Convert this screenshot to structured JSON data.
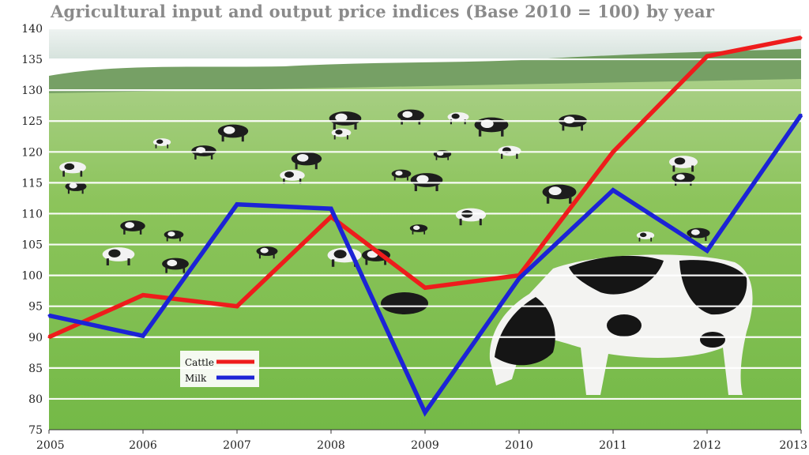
{
  "chart_data": {
    "type": "line",
    "title": "Agricultural input and output price indices (Base 2010 = 100) by year",
    "xlabel": "",
    "ylabel": "",
    "categories": [
      "2005",
      "2006",
      "2007",
      "2008",
      "2009",
      "2010",
      "2011",
      "2012",
      "2013"
    ],
    "ylim": [
      75,
      140
    ],
    "yticks": [
      75,
      80,
      85,
      90,
      95,
      100,
      105,
      110,
      115,
      120,
      125,
      130,
      135,
      140
    ],
    "grid": true,
    "legend_position": "lower-left",
    "series": [
      {
        "name": "Cattle",
        "color": "#ee1c1c",
        "values": [
          90,
          96.8,
          95,
          109.5,
          98,
          100,
          120,
          135.5,
          138.5
        ]
      },
      {
        "name": "Milk",
        "color": "#1c23d6",
        "values": [
          93.5,
          90.2,
          111.5,
          110.8,
          77.8,
          99.5,
          113.8,
          104,
          126
        ]
      }
    ],
    "background": "photo of cows grazing in a green field"
  },
  "colors": {
    "sky": "#dfe9e6",
    "trees": "#5e8f4a",
    "grass": "#7cc04e",
    "grid": "#ffffff",
    "axis_text": "#222222",
    "title_text": "#8a8a8a"
  }
}
